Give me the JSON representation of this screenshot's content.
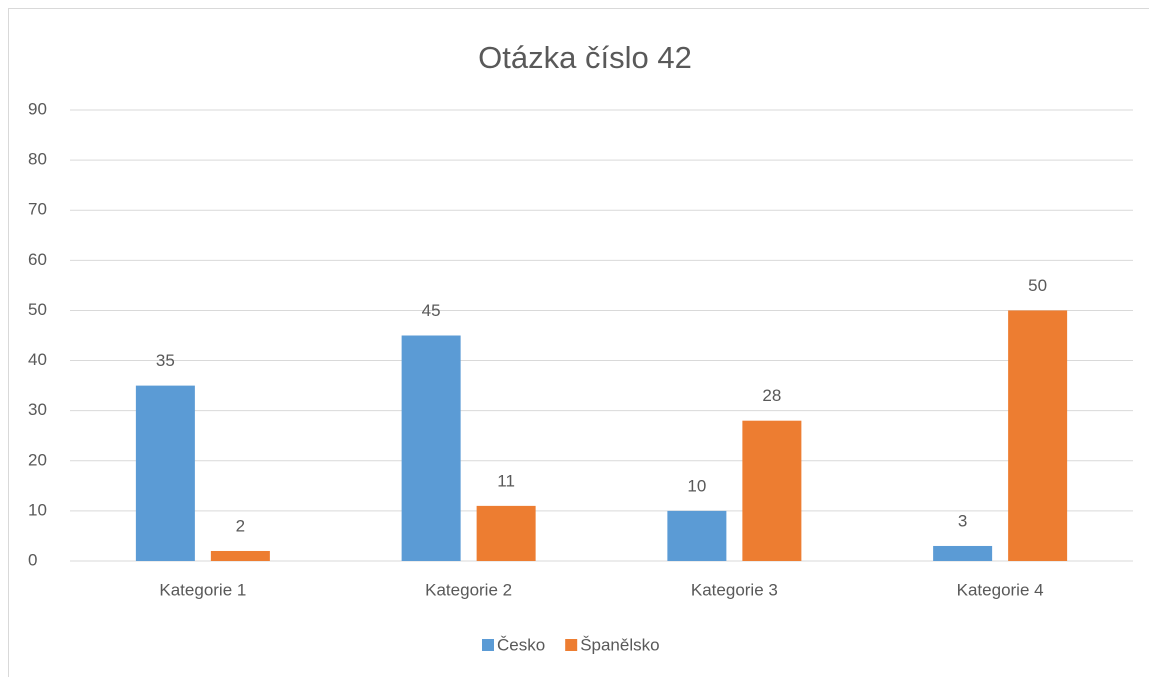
{
  "chart_data": {
    "type": "bar",
    "title": "Otázka číslo 42",
    "categories": [
      "Kategorie 1",
      "Kategorie 2",
      "Kategorie 3",
      "Kategorie 4"
    ],
    "series": [
      {
        "name": "Česko",
        "color": "#5b9bd5",
        "values": [
          35,
          45,
          10,
          3
        ]
      },
      {
        "name": "Španělsko",
        "color": "#ed7d31",
        "values": [
          2,
          11,
          28,
          50
        ]
      }
    ],
    "ylim": [
      0,
      90
    ],
    "yticks": [
      0,
      10,
      20,
      30,
      40,
      50,
      60,
      70,
      80,
      90
    ],
    "grid": true,
    "legend": "bottom"
  }
}
